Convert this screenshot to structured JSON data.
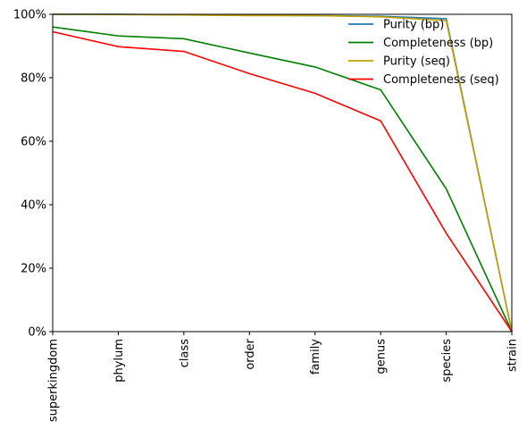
{
  "chart_data": {
    "type": "line",
    "categories": [
      "superkingdom",
      "phylum",
      "class",
      "order",
      "family",
      "genus",
      "species",
      "strain"
    ],
    "ylim": [
      0,
      100
    ],
    "yticks": [
      "0%",
      "20%",
      "40%",
      "60%",
      "80%",
      "100%"
    ],
    "legend_position": "top-right",
    "legend_frame": false,
    "grid": false,
    "series": [
      {
        "name": "Purity (bp)",
        "color": "#1f77b4",
        "values": [
          100,
          100,
          99.8,
          99.7,
          99.6,
          99.4,
          98.6,
          0
        ]
      },
      {
        "name": "Completeness (bp)",
        "color": "#008000",
        "values": [
          96,
          93.2,
          92.3,
          87.8,
          83.4,
          76.2,
          45,
          0
        ]
      },
      {
        "name": "Purity (seq)",
        "color": "#c0a000",
        "values": [
          100,
          99.9,
          99.8,
          99.6,
          99.6,
          99.2,
          98,
          0
        ]
      },
      {
        "name": "Completeness (seq)",
        "color": "#ff0000",
        "values": [
          94.5,
          89.8,
          88.3,
          81.3,
          75.1,
          66.4,
          31,
          0
        ]
      }
    ]
  }
}
